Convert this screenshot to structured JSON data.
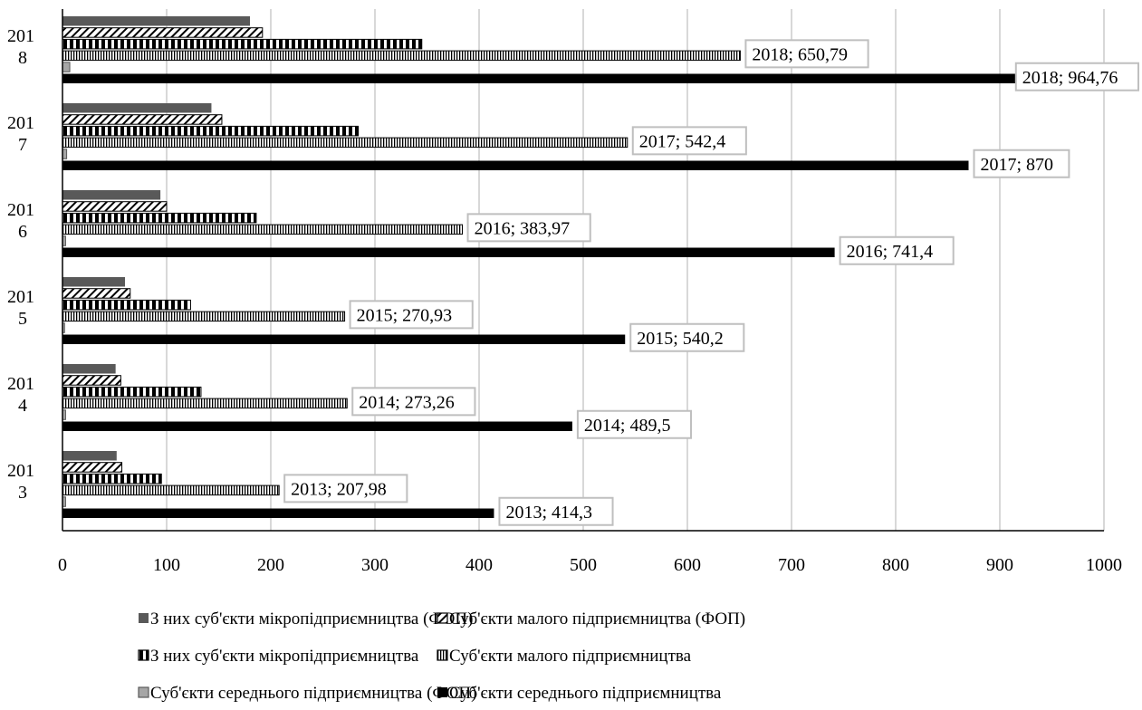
{
  "chart_data": {
    "type": "bar",
    "orientation": "horizontal",
    "categories": [
      "2013",
      "2014",
      "2015",
      "2016",
      "2017",
      "2018"
    ],
    "category_labels": [
      [
        "201",
        "3"
      ],
      [
        "201",
        "4"
      ],
      [
        "201",
        "5"
      ],
      [
        "201",
        "6"
      ],
      [
        "201",
        "7"
      ],
      [
        "201",
        "8"
      ]
    ],
    "series": [
      {
        "name": "З них суб'єкти мікропідприємництва (ФОП)",
        "values": [
          52,
          51,
          60,
          94,
          143,
          180
        ],
        "color": "#595959",
        "pattern": "solid-gray"
      },
      {
        "name": "Суб'єкти малого підприємництва (ФОП)",
        "values": [
          57,
          56,
          65,
          100,
          153,
          192
        ],
        "color": "#000000",
        "pattern": "diagonal"
      },
      {
        "name": "З них суб'єкти мікропідприємництва",
        "values": [
          95,
          133,
          123,
          186,
          284,
          345
        ],
        "color": "#000000",
        "pattern": "wide-vertical"
      },
      {
        "name": "Суб'єкти малого підприємництва",
        "values": [
          207.98,
          273.26,
          270.93,
          383.97,
          542.4,
          650.79
        ],
        "color": "#000000",
        "pattern": "fine-vertical"
      },
      {
        "name": "Суб'єкти середнього підприємництва (ФОП)",
        "values": [
          3,
          3,
          2,
          3,
          4,
          7
        ],
        "color": "#999999",
        "pattern": "light-gray"
      },
      {
        "name": "Суб'єкти середнього підприємництва",
        "values": [
          414.3,
          489.5,
          540.2,
          741.4,
          870,
          964.76
        ],
        "color": "#000000",
        "pattern": "solid-black"
      }
    ],
    "data_labels": [
      {
        "series": 3,
        "category": 0,
        "text": "2013; 207,98"
      },
      {
        "series": 5,
        "category": 0,
        "text": "2013; 414,3"
      },
      {
        "series": 3,
        "category": 1,
        "text": "2014; 273,26"
      },
      {
        "series": 5,
        "category": 1,
        "text": "2014; 489,5"
      },
      {
        "series": 3,
        "category": 2,
        "text": "2015; 270,93"
      },
      {
        "series": 5,
        "category": 2,
        "text": "2015; 540,2"
      },
      {
        "series": 3,
        "category": 3,
        "text": "2016; 383,97"
      },
      {
        "series": 5,
        "category": 3,
        "text": "2016; 741,4"
      },
      {
        "series": 3,
        "category": 4,
        "text": "2017; 542,4"
      },
      {
        "series": 5,
        "category": 4,
        "text": "2017; 870"
      },
      {
        "series": 3,
        "category": 5,
        "text": "2018; 650,79"
      },
      {
        "series": 5,
        "category": 5,
        "text": "2018; 964,76"
      }
    ],
    "xlim": [
      0,
      1000
    ],
    "x_ticks": [
      "0",
      "100",
      "200",
      "300",
      "400",
      "500",
      "600",
      "700",
      "800",
      "900",
      "1000"
    ],
    "grid": "vertical",
    "legend_position": "bottom",
    "title": "",
    "xlabel": "",
    "ylabel": ""
  }
}
